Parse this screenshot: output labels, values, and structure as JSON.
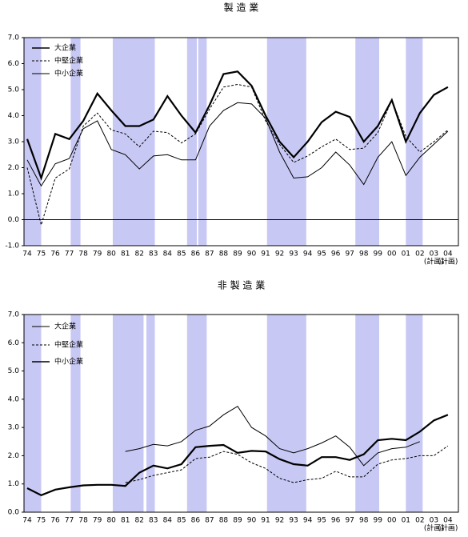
{
  "chart_data": [
    {
      "type": "line",
      "title": "製 造 業",
      "categories": [
        "74",
        "75",
        "76",
        "77",
        "78",
        "79",
        "80",
        "81",
        "82",
        "83",
        "84",
        "85",
        "86",
        "87",
        "88",
        "89",
        "90",
        "91",
        "92",
        "93",
        "94",
        "95",
        "96",
        "97",
        "98",
        "99",
        "00",
        "01",
        "02",
        "03",
        "04"
      ],
      "plan_note": {
        "label": "(計画)",
        "categories": [
          "03",
          "04"
        ]
      },
      "ylim": [
        -1,
        7
      ],
      "yticks": [
        {
          "value": -1,
          "label": "-1.0"
        },
        {
          "value": 0,
          "label": "0.0"
        },
        {
          "value": 1,
          "label": "1.0"
        },
        {
          "value": 2,
          "label": "2.0"
        },
        {
          "value": 3,
          "label": "3.0"
        },
        {
          "value": 4,
          "label": "4.0"
        },
        {
          "value": 5,
          "label": "5.0"
        },
        {
          "value": 6,
          "label": "6.0"
        },
        {
          "value": 7,
          "label": "7.0"
        }
      ],
      "shade_color": "#c8c8f5",
      "shaded_periods": [
        [
          -0.2,
          1.0
        ],
        [
          3.1,
          3.8
        ],
        [
          6.1,
          9.1
        ],
        [
          11.4,
          12.1
        ],
        [
          12.2,
          12.8
        ],
        [
          17.1,
          19.9
        ],
        [
          23.4,
          25.1
        ],
        [
          27.0,
          28.2
        ]
      ],
      "legend": "upper left",
      "series": [
        {
          "name": "大企業",
          "color": "#000000",
          "line_width": 2.2,
          "dash": false,
          "values": [
            3.1,
            1.6,
            3.3,
            3.1,
            3.8,
            4.85,
            4.2,
            3.6,
            3.6,
            3.85,
            4.75,
            4.0,
            3.35,
            4.4,
            5.6,
            5.7,
            5.15,
            4.0,
            3.0,
            2.4,
            3.0,
            3.75,
            4.15,
            3.95,
            3.0,
            3.6,
            4.6,
            3.0,
            4.1,
            4.8,
            5.1
          ]
        },
        {
          "name": "中堅企業",
          "color": "#000000",
          "line_width": 1,
          "dash": true,
          "values": [
            2.0,
            -0.2,
            1.6,
            1.95,
            3.6,
            4.1,
            3.45,
            3.3,
            2.8,
            3.4,
            3.35,
            2.95,
            3.3,
            4.25,
            5.1,
            5.2,
            5.1,
            3.8,
            2.9,
            2.2,
            2.45,
            2.8,
            3.1,
            2.7,
            2.75,
            3.35,
            4.6,
            3.2,
            2.6,
            3.0,
            3.45
          ]
        },
        {
          "name": "中小企業",
          "color": "#000000",
          "line_width": 1,
          "dash": false,
          "values": [
            2.3,
            1.3,
            2.15,
            2.35,
            3.5,
            3.8,
            2.7,
            2.5,
            1.95,
            2.45,
            2.5,
            2.3,
            2.3,
            3.6,
            4.2,
            4.5,
            4.45,
            3.9,
            2.6,
            1.6,
            1.65,
            2.0,
            2.6,
            2.1,
            1.35,
            2.4,
            3.0,
            1.7,
            2.4,
            2.9,
            3.4
          ]
        }
      ]
    },
    {
      "type": "line",
      "title": "非 製 造 業",
      "categories": [
        "74",
        "75",
        "76",
        "77",
        "78",
        "79",
        "80",
        "81",
        "82",
        "83",
        "84",
        "85",
        "86",
        "87",
        "88",
        "89",
        "90",
        "91",
        "92",
        "93",
        "94",
        "95",
        "96",
        "97",
        "98",
        "99",
        "00",
        "01",
        "02",
        "03",
        "04"
      ],
      "plan_note": {
        "label": "(計画)",
        "categories": [
          "03",
          "04"
        ]
      },
      "ylim": [
        0,
        7
      ],
      "yticks": [
        {
          "value": 0,
          "label": "0.0"
        },
        {
          "value": 1,
          "label": "1.0"
        },
        {
          "value": 2,
          "label": "2.0"
        },
        {
          "value": 3,
          "label": "3.0"
        },
        {
          "value": 4,
          "label": "4.0"
        },
        {
          "value": 5,
          "label": "5.0"
        },
        {
          "value": 6,
          "label": "6.0"
        },
        {
          "value": 7,
          "label": "7.0"
        }
      ],
      "shade_color": "#c8c8f5",
      "shaded_periods": [
        [
          -0.2,
          1.0
        ],
        [
          3.1,
          3.8
        ],
        [
          6.1,
          8.3
        ],
        [
          8.5,
          9.1
        ],
        [
          11.4,
          12.8
        ],
        [
          17.1,
          19.9
        ],
        [
          23.4,
          25.1
        ],
        [
          27.0,
          28.2
        ]
      ],
      "legend": "upper left",
      "series": [
        {
          "name": "大企業",
          "color": "#000000",
          "line_width": 1,
          "dash": false,
          "values": [
            null,
            null,
            null,
            null,
            null,
            null,
            null,
            2.15,
            2.25,
            2.4,
            2.35,
            2.5,
            2.9,
            3.05,
            3.45,
            3.75,
            3.0,
            2.7,
            2.25,
            2.1,
            2.25,
            2.45,
            2.7,
            2.3,
            1.65,
            2.1,
            2.25,
            2.3,
            2.5,
            null,
            null
          ]
        },
        {
          "name": "中堅企業",
          "color": "#000000",
          "line_width": 1,
          "dash": true,
          "values": [
            null,
            null,
            null,
            null,
            null,
            null,
            null,
            1.05,
            1.15,
            1.3,
            1.4,
            1.5,
            1.9,
            1.95,
            2.15,
            2.05,
            1.75,
            1.55,
            1.2,
            1.05,
            1.15,
            1.2,
            1.45,
            1.25,
            1.25,
            1.7,
            1.85,
            1.9,
            2.0,
            2.0,
            2.35
          ]
        },
        {
          "name": "中小企業",
          "color": "#000000",
          "line_width": 2.2,
          "dash": false,
          "values": [
            0.85,
            0.6,
            0.8,
            0.88,
            0.95,
            0.97,
            0.97,
            0.93,
            1.4,
            1.65,
            1.55,
            1.7,
            2.3,
            2.35,
            2.38,
            2.1,
            2.17,
            2.15,
            1.88,
            1.7,
            1.65,
            1.95,
            1.95,
            1.85,
            2.05,
            2.55,
            2.6,
            2.55,
            2.85,
            3.25,
            3.45
          ]
        }
      ]
    }
  ]
}
